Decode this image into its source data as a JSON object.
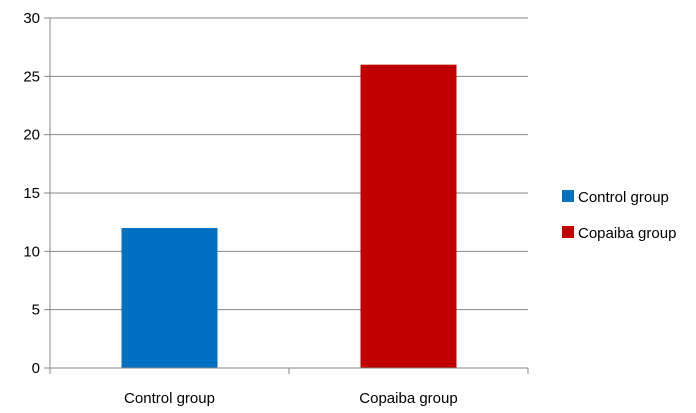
{
  "chart_data": {
    "type": "bar",
    "title": "",
    "xlabel": "",
    "ylabel": "",
    "categories": [
      "Control group",
      "Copaiba group"
    ],
    "values": [
      12,
      26
    ],
    "colors": [
      "#0070c0",
      "#c00000"
    ],
    "ylim": [
      0,
      30
    ],
    "yticks": [
      "0",
      "5",
      "10",
      "15",
      "20",
      "25",
      "30"
    ],
    "grid": true,
    "legend": {
      "position": "right",
      "entries": [
        "Control group",
        "Copaiba group"
      ]
    }
  }
}
